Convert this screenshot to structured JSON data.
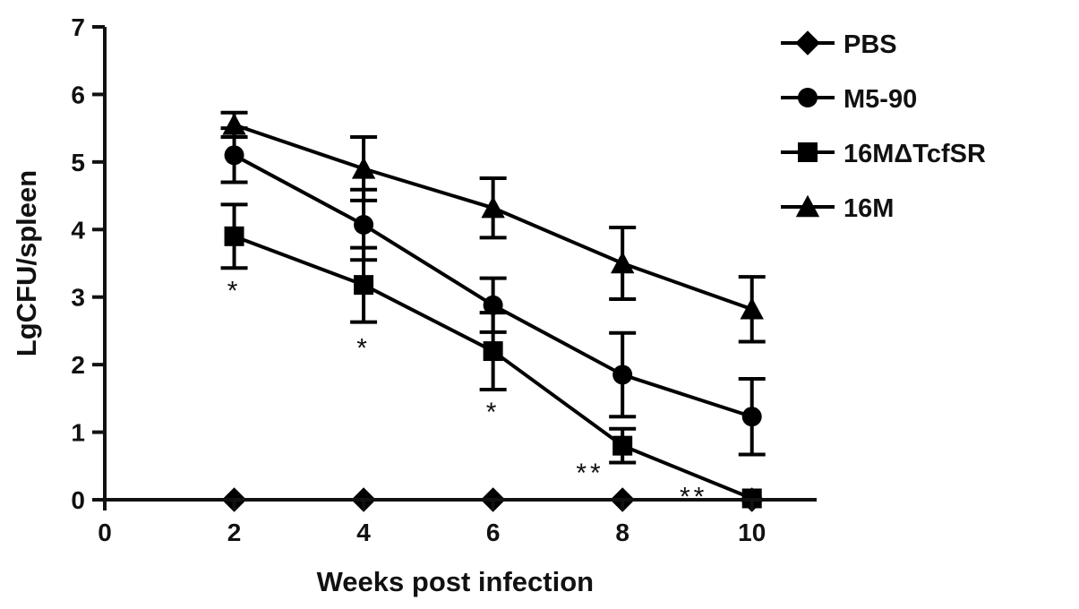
{
  "chart_data": {
    "type": "line",
    "title": "",
    "xlabel": "Weeks post infection",
    "ylabel": "LgCFU/spleen",
    "xlim": [
      0,
      11
    ],
    "ylim": [
      0,
      7
    ],
    "x_ticks": [
      "0",
      "2",
      "4",
      "6",
      "8",
      "10"
    ],
    "y_ticks": [
      "0",
      "1",
      "2",
      "3",
      "4",
      "5",
      "6",
      "7"
    ],
    "grid": false,
    "legend_position": "top-right",
    "series": [
      {
        "name": "PBS",
        "marker": "diamond",
        "color": "#000000",
        "points": [
          {
            "x": 2,
            "y": 0
          },
          {
            "x": 4,
            "y": 0
          },
          {
            "x": 6,
            "y": 0
          },
          {
            "x": 8,
            "y": 0
          },
          {
            "x": 10,
            "y": 0
          }
        ]
      },
      {
        "name": "M5-90",
        "marker": "circle",
        "color": "#000000",
        "points": [
          {
            "x": 2,
            "y": 5.1,
            "err": 0.4
          },
          {
            "x": 4,
            "y": 4.07,
            "err": 0.52
          },
          {
            "x": 6,
            "y": 2.88,
            "err": 0.4
          },
          {
            "x": 8,
            "y": 1.85,
            "err": 0.62
          },
          {
            "x": 10,
            "y": 1.23,
            "err": 0.56
          }
        ]
      },
      {
        "name": "16MΔTcfSR",
        "marker": "square",
        "color": "#000000",
        "points": [
          {
            "x": 2,
            "y": 3.9,
            "err": 0.47
          },
          {
            "x": 4,
            "y": 3.18,
            "err": 0.55
          },
          {
            "x": 6,
            "y": 2.2,
            "err": 0.57
          },
          {
            "x": 8,
            "y": 0.8,
            "err": 0.25
          },
          {
            "x": 10,
            "y": 0.02,
            "err": 0
          }
        ]
      },
      {
        "name": "16M",
        "marker": "triangle",
        "color": "#000000",
        "points": [
          {
            "x": 2,
            "y": 5.55,
            "err": 0.18
          },
          {
            "x": 4,
            "y": 4.9,
            "err": 0.47
          },
          {
            "x": 6,
            "y": 4.32,
            "err": 0.44
          },
          {
            "x": 8,
            "y": 3.5,
            "err": 0.53
          },
          {
            "x": 10,
            "y": 2.82,
            "err": 0.48
          }
        ]
      }
    ],
    "annotations": [
      {
        "text": "*",
        "x": 2,
        "y": 3.15
      },
      {
        "text": "*",
        "x": 4,
        "y": 2.3
      },
      {
        "text": "*",
        "x": 6,
        "y": 1.35
      },
      {
        "text": "**",
        "x": 7.5,
        "y": 0.45
      },
      {
        "text": "**",
        "x": 9.1,
        "y": 0.1
      }
    ]
  }
}
